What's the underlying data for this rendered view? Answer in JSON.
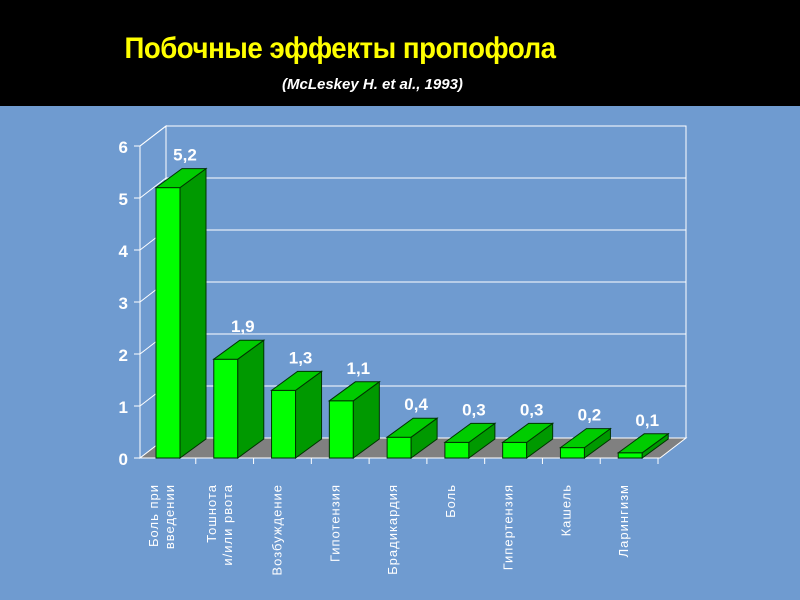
{
  "slide": {
    "title": "Побочные эффекты пропофола",
    "subtitle": "(McLeskey H. et al., 1993)"
  },
  "chart_data": {
    "type": "bar",
    "title": "",
    "xlabel": "",
    "ylabel": "",
    "ylim": [
      0,
      6
    ],
    "yticks": [
      "0",
      "1",
      "2",
      "3",
      "4",
      "5",
      "6"
    ],
    "grid": true,
    "categories": [
      [
        "Боль при",
        "введении"
      ],
      [
        "Тошнота",
        "и/или рвота"
      ],
      [
        "Возбуждение"
      ],
      [
        "Гипотензия"
      ],
      [
        "Брадикардия"
      ],
      [
        "Боль"
      ],
      [
        "Гипертензия"
      ],
      [
        "Кашель"
      ],
      [
        "Ларингизм"
      ]
    ],
    "values": [
      5.2,
      1.9,
      1.3,
      1.1,
      0.4,
      0.3,
      0.3,
      0.2,
      0.1
    ],
    "value_labels": [
      "5,2",
      "1,9",
      "1,3",
      "1,1",
      "0,4",
      "0,3",
      "0,3",
      "0,2",
      "0,1"
    ],
    "colors": {
      "bar_front": "#00ff00",
      "bar_side": "#009900",
      "bar_top": "#00cc00",
      "floor": "#808080",
      "wall": "#6f9bd0",
      "grid": "#ffffff",
      "text": "#ffffff"
    }
  }
}
